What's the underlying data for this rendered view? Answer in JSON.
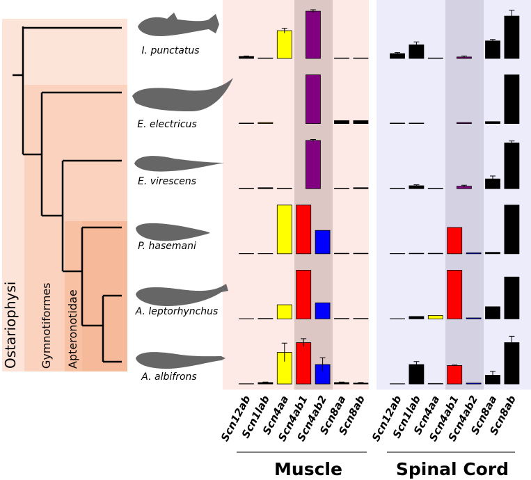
{
  "clades": [
    "Ostariophysi",
    "Gymnotiformes",
    "Apteronotidae"
  ],
  "chart_data": [
    {
      "type": "bar",
      "title": "Muscle",
      "categories": [
        "Scn12ab",
        "Scn1lab",
        "Scn4aa",
        "Scn4ab1",
        "Scn4ab2",
        "Scn8aa",
        "Scn8ab"
      ],
      "ylim": [
        0,
        100
      ],
      "series": [
        {
          "name": "I. punctatus",
          "values": [
            4,
            1,
            57,
            97,
            null,
            1,
            1
          ],
          "errors": [
            1,
            null,
            5,
            3,
            null,
            null,
            null
          ],
          "colors": [
            "#000000",
            "#000000",
            "#ffff00",
            "#800080",
            null,
            "#000000",
            "#000000"
          ]
        },
        {
          "name": "E. electricus",
          "values": [
            1,
            2,
            null,
            100,
            null,
            6,
            6
          ],
          "errors": [
            null,
            null,
            null,
            null,
            null,
            null,
            null
          ],
          "colors": [
            "#000000",
            "#806000",
            null,
            "#800080",
            null,
            "#000000",
            "#000000"
          ]
        },
        {
          "name": "E. virescens",
          "values": [
            1,
            2,
            1,
            99,
            null,
            1,
            2
          ],
          "errors": [
            null,
            null,
            null,
            2,
            null,
            null,
            null
          ],
          "colors": [
            "#000000",
            "#000000",
            "#000000",
            "#800080",
            null,
            "#000000",
            "#000000"
          ]
        },
        {
          "name": "P. hasemani",
          "values": [
            0.5,
            0.5,
            100,
            100,
            48,
            1,
            1
          ],
          "errors": [
            null,
            null,
            null,
            null,
            null,
            null,
            null
          ],
          "colors": [
            "#000000",
            "#000000",
            "#ffff00",
            "#ff0000",
            "#0000ff",
            "#000000",
            "#000000"
          ]
        },
        {
          "name": "A. leptorhynchus",
          "values": [
            0.5,
            1,
            29,
            100,
            33,
            1,
            1
          ],
          "errors": [
            null,
            null,
            null,
            null,
            null,
            null,
            null
          ],
          "colors": [
            "#000000",
            "#000000",
            "#ffff00",
            "#ff0000",
            "#0000ff",
            "#000000",
            "#000000"
          ]
        },
        {
          "name": "A. albifrons",
          "values": [
            0.5,
            3,
            65,
            85,
            40,
            3,
            2
          ],
          "errors": [
            null,
            1,
            19,
            8,
            14,
            1,
            1
          ],
          "colors": [
            "#000000",
            "#000000",
            "#ffff00",
            "#ff0000",
            "#0000ff",
            "#000000",
            "#000000"
          ]
        }
      ]
    },
    {
      "type": "bar",
      "title": "Spinal Cord",
      "categories": [
        "Scn12ab",
        "Scn1lab",
        "Scn4aa",
        "Scn4ab1",
        "Scn4ab2",
        "Scn8aa",
        "Scn8ab"
      ],
      "ylim": [
        0,
        100
      ],
      "series": [
        {
          "values": [
            10,
            28,
            1,
            3,
            null,
            36,
            87
          ],
          "errors": [
            2,
            6,
            null,
            2,
            null,
            3,
            12
          ],
          "colors": [
            "#000000",
            "#000000",
            "#000000",
            "#800080",
            null,
            "#000000",
            "#000000"
          ]
        },
        {
          "values": [
            1,
            1,
            null,
            2,
            null,
            4,
            100
          ],
          "errors": [
            null,
            null,
            null,
            null,
            null,
            null,
            null
          ],
          "colors": [
            "#000000",
            "#999999",
            null,
            "#800080",
            null,
            "#000000",
            "#000000"
          ]
        },
        {
          "values": [
            1,
            6,
            1,
            5,
            null,
            20,
            94
          ],
          "errors": [
            null,
            2,
            null,
            2,
            null,
            6,
            4
          ],
          "colors": [
            "#000000",
            "#000000",
            "#000000",
            "#800080",
            null,
            "#000000",
            "#000000"
          ]
        },
        {
          "values": [
            0.5,
            1,
            1,
            54,
            2,
            3,
            100
          ],
          "errors": [
            null,
            null,
            null,
            null,
            null,
            null,
            null
          ],
          "colors": [
            "#000000",
            "#000000",
            "#000000",
            "#ff0000",
            "#0000ff",
            "#000000",
            "#000000"
          ]
        },
        {
          "values": [
            0.5,
            5,
            7,
            100,
            2,
            25,
            86
          ],
          "errors": [
            null,
            null,
            null,
            null,
            null,
            null,
            null
          ],
          "colors": [
            "#000000",
            "#000000",
            "#ffff00",
            "#ff0000",
            "#0000ff",
            "#000000",
            "#000000"
          ]
        },
        {
          "values": [
            0.5,
            40,
            1,
            38,
            2,
            18,
            85
          ],
          "errors": [
            null,
            6,
            null,
            1,
            null,
            8,
            13
          ],
          "colors": [
            "#000000",
            "#000000",
            "#000000",
            "#ff0000",
            "#0000ff",
            "#000000",
            "#000000"
          ]
        }
      ]
    }
  ]
}
